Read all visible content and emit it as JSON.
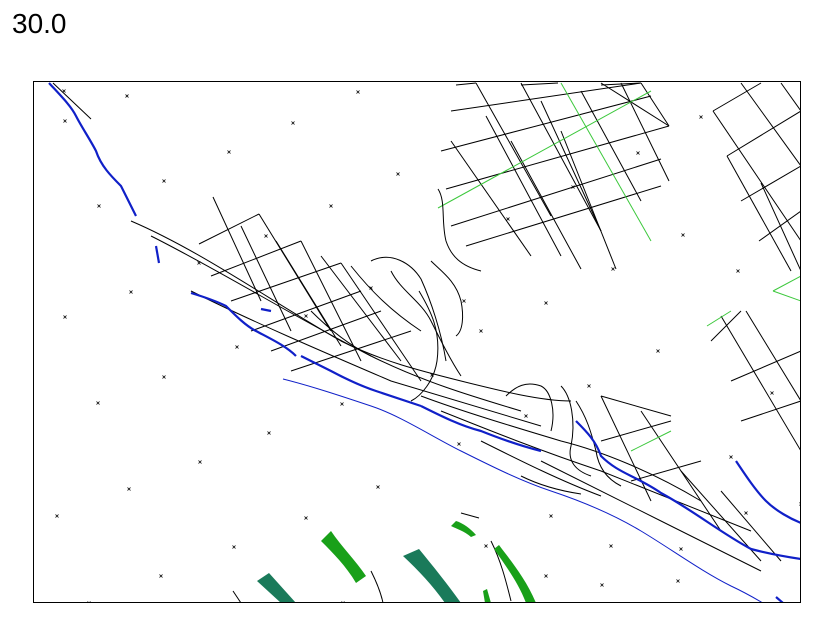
{
  "header": {
    "time_value": "30.0"
  },
  "map": {
    "colors": {
      "coastline": "#1020c8",
      "grid": "#000000",
      "grid_highlight": "#3cc83c",
      "faults": "#000000",
      "markers": "#000000",
      "dark_green": "#1a7a5a",
      "bright_green": "#19a019",
      "frame": "#000000"
    }
  }
}
